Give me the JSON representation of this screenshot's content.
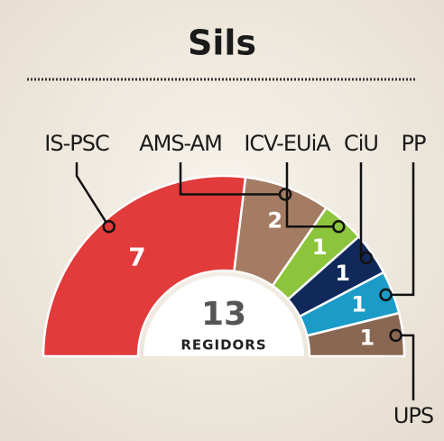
{
  "chart_data": {
    "type": "pie",
    "title": "Sils",
    "categories": [
      "IS-PSC",
      "AMS-AM",
      "ICV-EUiA",
      "CiU",
      "PP",
      "UPS"
    ],
    "values": [
      7,
      2,
      1,
      1,
      1,
      1
    ],
    "colors": [
      "#e23b3b",
      "#a47c64",
      "#8cc43c",
      "#10295a",
      "#1b9bc8",
      "#8a6752"
    ],
    "total": 13,
    "total_label": "REGIDORS"
  }
}
